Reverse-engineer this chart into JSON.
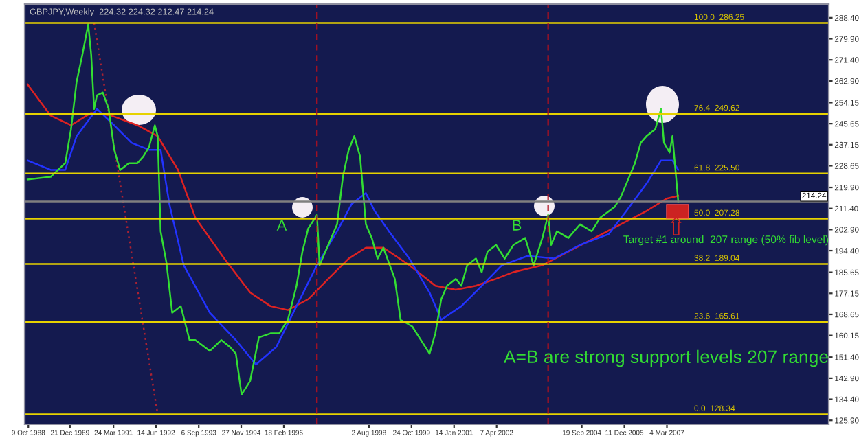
{
  "chart_data": {
    "type": "line",
    "title": "GBPJPY,Weekly  224.32 224.32 212.47 214.24",
    "annotations": [
      "A",
      "B",
      "Target #1 around  207 range (50% fib level)",
      "A=B are strong support levels 207 range"
    ],
    "xlim": [
      "1988-09",
      "2011-11"
    ],
    "ylim": [
      124.3,
      293.9
    ],
    "xticks": [
      {
        "value": "1988-10-09",
        "label": "9 Oct 1988"
      },
      {
        "value": "1989-12-21",
        "label": "21 Dec 1989"
      },
      {
        "value": "1991-03-24",
        "label": "24 Mar 1991"
      },
      {
        "value": "1992-06-14",
        "label": "14 Jun 1992"
      },
      {
        "value": "1993-09-06",
        "label": "6 Sep 1993"
      },
      {
        "value": "1994-11-27",
        "label": "27 Nov 1994"
      },
      {
        "value": "1996-02-18",
        "label": "18 Feb 1996"
      },
      {
        "value": "1998-08-02",
        "label": "2 Aug 1998"
      },
      {
        "value": "1999-10-24",
        "label": "24 Oct 1999"
      },
      {
        "value": "2001-01-14",
        "label": "14 Jan 2001"
      },
      {
        "value": "2002-04-07",
        "label": "7 Apr 2002"
      },
      {
        "value": "2004-09-19",
        "label": "19 Sep 2004"
      },
      {
        "value": "2005-12-11",
        "label": "11 Dec 2005"
      },
      {
        "value": "2007-03-04",
        "label": "4 Mar 2007"
      }
    ],
    "yticks": [
      {
        "value": 288.4,
        "label": "288.40"
      },
      {
        "value": 279.9,
        "label": "279.90"
      },
      {
        "value": 271.4,
        "label": "271.40"
      },
      {
        "value": 262.9,
        "label": "262.90"
      },
      254.15,
      245.65,
      237.15,
      228.65,
      {
        "value": 219.9,
        "label": "219.90"
      },
      {
        "value": 211.4,
        "label": "211.40"
      },
      {
        "value": 202.9,
        "label": "202.90"
      },
      {
        "value": 194.4,
        "label": "194.40"
      },
      185.65,
      177.15,
      168.65,
      160.15,
      {
        "value": 151.4,
        "label": "151.40"
      },
      {
        "value": 142.9,
        "label": "142.90"
      },
      {
        "value": 134.4,
        "label": "134.40"
      },
      {
        "value": 125.9,
        "label": "125.90"
      }
    ],
    "grid": false,
    "ref_lines": [
      {
        "axis": "y",
        "value": 286.25,
        "label": "100.0  286.25",
        "color": "#e6d200"
      },
      {
        "axis": "y",
        "value": 249.62,
        "label": "76.4  249.62",
        "color": "#e6d200"
      },
      {
        "axis": "y",
        "value": 225.5,
        "label": "61.8  225.50",
        "color": "#e6d200"
      },
      {
        "axis": "y",
        "value": 207.28,
        "label": "50.0  207.28",
        "color": "#e6d200"
      },
      {
        "axis": "y",
        "value": 189.04,
        "label": "38.2  189.04",
        "color": "#e6d200"
      },
      {
        "axis": "y",
        "value": 165.61,
        "label": "23.6  165.61",
        "color": "#e6d200"
      },
      {
        "axis": "y",
        "value": 128.34,
        "label": "0.0  128.34",
        "color": "#e6d200"
      },
      {
        "axis": "y",
        "value": 214.24,
        "label": "214.24",
        "color": "#7f7f7f"
      },
      {
        "axis": "x",
        "value": "1997-02",
        "color": "#b01020",
        "line_style": "dashed"
      },
      {
        "axis": "x",
        "value": "2003-10",
        "color": "#b01020",
        "line_style": "dashed"
      }
    ],
    "series": [
      {
        "color": "#dd2222",
        "line_style": "solid",
        "x": [
          "1988-10",
          "1989-06",
          "1990-01",
          "1990-08",
          "1991-03",
          "1991-12",
          "1992-07",
          "1993-02",
          "1993-08",
          "1994-06",
          "1995-03",
          "1995-10",
          "1996-04",
          "1996-11",
          "1997-06",
          "1998-01",
          "1998-07",
          "1999-01",
          "1999-10",
          "2000-07",
          "2001-02",
          "2001-09",
          "2002-04",
          "2002-10",
          "2003-08",
          "2004-05",
          "2005-02",
          "2005-11",
          "2006-08",
          "2007-03",
          "2007-07"
        ],
        "values": [
          261.5,
          248.9,
          245.0,
          250.0,
          248.9,
          245.0,
          240.6,
          226.9,
          207.7,
          191.2,
          177.5,
          172.0,
          170.4,
          174.8,
          183.0,
          191.2,
          195.6,
          195.6,
          188.5,
          180.2,
          178.6,
          180.2,
          183.0,
          185.7,
          188.5,
          194.0,
          199.5,
          205.0,
          210.4,
          215.4,
          216.5
        ]
      },
      {
        "color": "#2233ff",
        "line_style": "solid",
        "x": [
          "1988-10",
          "1989-06",
          "1989-11",
          "1990-03",
          "1990-10",
          "1991-03",
          "1991-10",
          "1992-04",
          "1992-08",
          "1992-11",
          "1993-04",
          "1994-01",
          "1994-10",
          "1995-05",
          "1995-12",
          "1996-07",
          "1997-02",
          "1997-09",
          "1998-02",
          "1998-07",
          "1998-10",
          "1999-03",
          "1999-10",
          "2000-05",
          "2000-09",
          "2001-04",
          "2001-11",
          "2002-06",
          "2003-03",
          "2003-12",
          "2004-09",
          "2005-07",
          "2006-01",
          "2006-08",
          "2007-01",
          "2007-05",
          "2007-07"
        ],
        "values": [
          230.8,
          227.0,
          227.0,
          240.6,
          251.6,
          246.1,
          237.9,
          235.1,
          235.1,
          213.2,
          188.5,
          169.3,
          158.3,
          148.4,
          155.5,
          172.0,
          188.5,
          202.2,
          213.2,
          217.6,
          210.4,
          202.2,
          191.2,
          177.5,
          166.5,
          172.0,
          180.2,
          188.5,
          192.3,
          191.2,
          196.7,
          201.1,
          210.4,
          221.4,
          230.8,
          230.8,
          227.0
        ]
      },
      {
        "color": "#aa2233",
        "line_style": "dotted",
        "x": [
          "1990-09",
          "1992-07"
        ],
        "values": [
          286.3,
          128.3
        ]
      },
      {
        "color": "#33dd33",
        "line_style": "solid",
        "x": [
          "1988-10",
          "1989-06",
          "1989-11",
          "1990-01",
          "1990-03",
          "1990-05",
          "1990-07",
          "1990-08",
          "1990-09",
          "1990-10",
          "1990-12",
          "1991-02",
          "1991-04",
          "1991-06",
          "1991-09",
          "1991-12",
          "1992-02",
          "1992-04",
          "1992-06",
          "1992-07",
          "1992-08",
          "1992-10",
          "1992-12",
          "1993-03",
          "1993-06",
          "1993-08",
          "1994-01",
          "1994-05",
          "1994-08",
          "1994-10",
          "1994-12",
          "1995-03",
          "1995-06",
          "1995-10",
          "1996-01",
          "1996-04",
          "1996-07",
          "1996-09",
          "1996-11",
          "1997-02",
          "1997-03",
          "1997-05",
          "1997-09",
          "1997-11",
          "1998-01",
          "1998-03",
          "1998-05",
          "1998-07",
          "1998-09",
          "1998-11",
          "1999-01",
          "1999-05",
          "1999-07",
          "1999-11",
          "2000-02",
          "2000-05",
          "2000-07",
          "2000-09",
          "2000-11",
          "2001-02",
          "2001-04",
          "2001-06",
          "2001-09",
          "2001-11",
          "2002-01",
          "2002-04",
          "2002-07",
          "2002-10",
          "2003-02",
          "2003-05",
          "2003-08",
          "2003-10",
          "2003-11",
          "2004-01",
          "2004-05",
          "2004-09",
          "2005-01",
          "2005-04",
          "2005-09",
          "2005-11",
          "2006-01",
          "2006-04",
          "2006-06",
          "2006-08",
          "2006-11",
          "2007-01",
          "2007-02",
          "2007-04",
          "2007-05",
          "2007-07"
        ],
        "values": [
          223.1,
          224.2,
          229.7,
          243.4,
          262.6,
          273.6,
          285.7,
          273.6,
          251.6,
          257.1,
          258.2,
          251.6,
          235.1,
          226.9,
          229.7,
          229.7,
          232.4,
          236.2,
          245.0,
          240.6,
          202.2,
          189.6,
          169.3,
          172.0,
          158.3,
          158.3,
          153.9,
          158.3,
          155.5,
          152.8,
          136.3,
          141.8,
          159.4,
          161.0,
          161.0,
          166.5,
          180.2,
          194.0,
          203.3,
          208.8,
          188.5,
          194.0,
          205.0,
          224.2,
          235.1,
          240.6,
          232.4,
          205.0,
          199.5,
          191.2,
          195.6,
          183.0,
          166.5,
          163.8,
          158.3,
          152.8,
          161.0,
          174.8,
          180.2,
          183.0,
          180.2,
          188.5,
          191.2,
          185.7,
          194.0,
          196.7,
          191.2,
          196.7,
          199.5,
          188.5,
          199.5,
          208.8,
          196.7,
          202.2,
          199.5,
          205.0,
          202.2,
          207.7,
          212.1,
          215.9,
          221.4,
          229.7,
          237.9,
          240.6,
          243.4,
          251.6,
          237.9,
          234.0,
          240.6,
          214.2
        ]
      }
    ]
  }
}
